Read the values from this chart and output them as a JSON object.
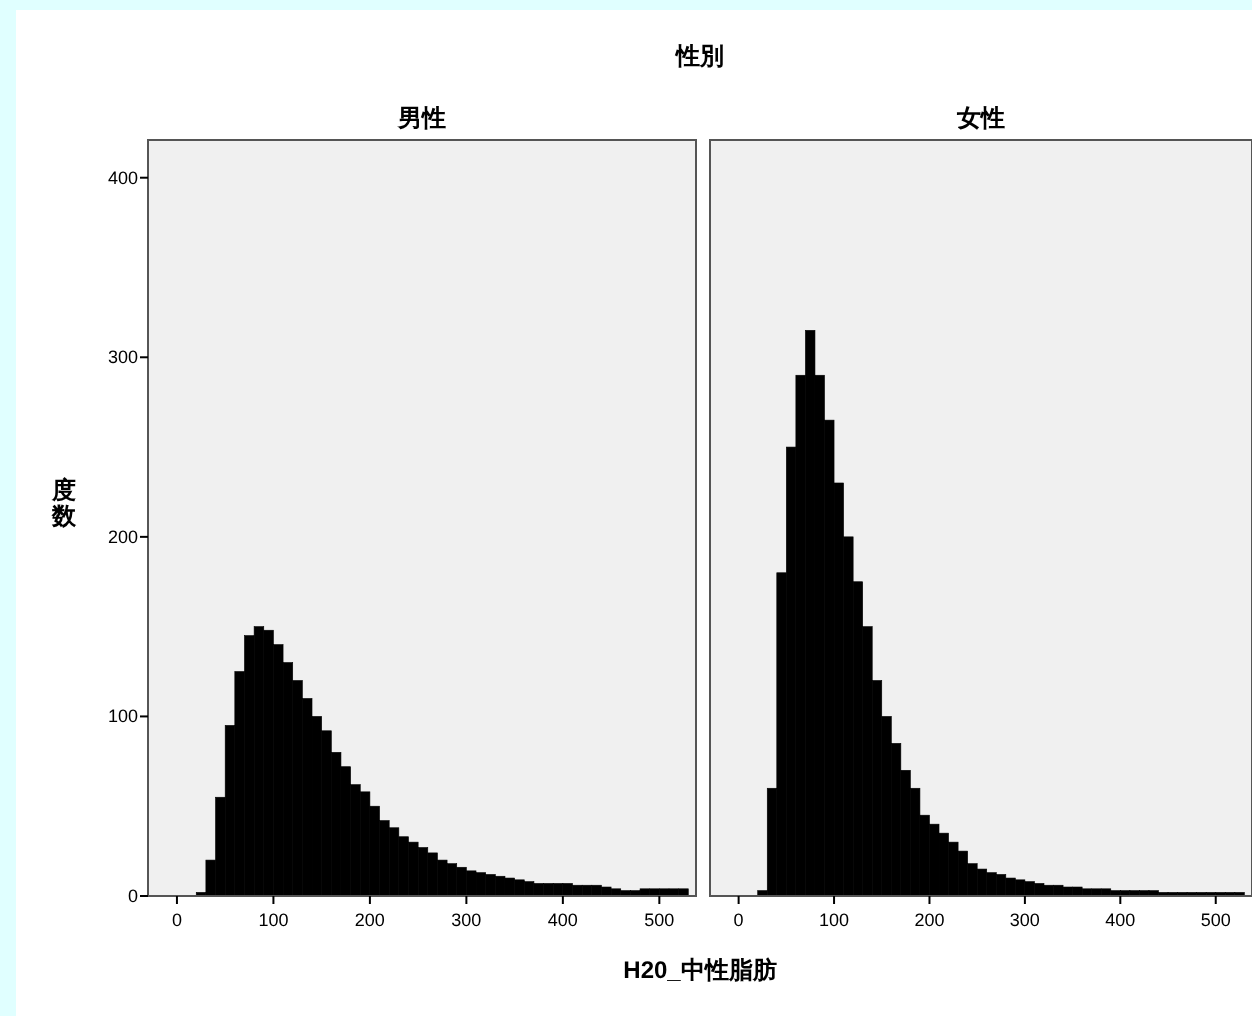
{
  "chart_data": [
    {
      "type": "histogram",
      "subtitle": "性別",
      "title": "男性",
      "ylabel": "度数",
      "xlabel": "H20_中性脂肪",
      "color": "#000000",
      "grid": false,
      "bins": [
        20,
        30,
        40,
        50,
        60,
        70,
        80,
        90,
        100,
        110,
        120,
        130,
        140,
        150,
        160,
        170,
        180,
        190,
        200,
        210,
        220,
        230,
        240,
        250,
        260,
        270,
        280,
        290,
        300,
        310,
        320,
        330,
        340,
        350,
        360,
        370,
        380,
        390,
        400,
        410,
        420,
        430,
        440,
        450,
        460,
        470,
        480,
        490,
        500,
        510,
        520,
        530
      ],
      "values": [
        2,
        20,
        55,
        95,
        125,
        145,
        150,
        148,
        140,
        130,
        120,
        110,
        100,
        92,
        80,
        72,
        62,
        58,
        50,
        42,
        38,
        33,
        30,
        27,
        24,
        20,
        18,
        16,
        14,
        13,
        12,
        11,
        10,
        9,
        8,
        7,
        7,
        7,
        7,
        6,
        6,
        6,
        5,
        4,
        3,
        3,
        4,
        4,
        4,
        4,
        4
      ],
      "xlim": [
        -30,
        538
      ],
      "ylim": [
        0,
        421
      ],
      "xticks": [
        0,
        100,
        200,
        300,
        400,
        500
      ],
      "yticks": [
        0,
        100,
        200,
        300,
        400
      ]
    },
    {
      "type": "histogram",
      "title": "女性",
      "color": "#000000",
      "grid": false,
      "tick_labels": "x",
      "bins": [
        20,
        30,
        40,
        50,
        60,
        70,
        80,
        90,
        100,
        110,
        120,
        130,
        140,
        150,
        160,
        170,
        180,
        190,
        200,
        210,
        220,
        230,
        240,
        250,
        260,
        270,
        280,
        290,
        300,
        310,
        320,
        330,
        340,
        350,
        360,
        370,
        380,
        390,
        400,
        410,
        420,
        430,
        440,
        450,
        460,
        470,
        480,
        490,
        500,
        510,
        520,
        530
      ],
      "values": [
        3,
        60,
        180,
        250,
        290,
        315,
        290,
        265,
        230,
        200,
        175,
        150,
        120,
        100,
        85,
        70,
        60,
        45,
        40,
        35,
        30,
        25,
        18,
        15,
        13,
        12,
        10,
        9,
        8,
        7,
        6,
        6,
        5,
        5,
        4,
        4,
        4,
        3,
        3,
        3,
        3,
        3,
        2,
        2,
        2,
        2,
        2,
        2,
        2,
        2,
        2
      ],
      "xlim": [
        -30,
        538
      ],
      "ylim": [
        0,
        421
      ],
      "xticks": [
        0,
        100,
        200,
        300,
        400,
        500
      ]
    }
  ]
}
